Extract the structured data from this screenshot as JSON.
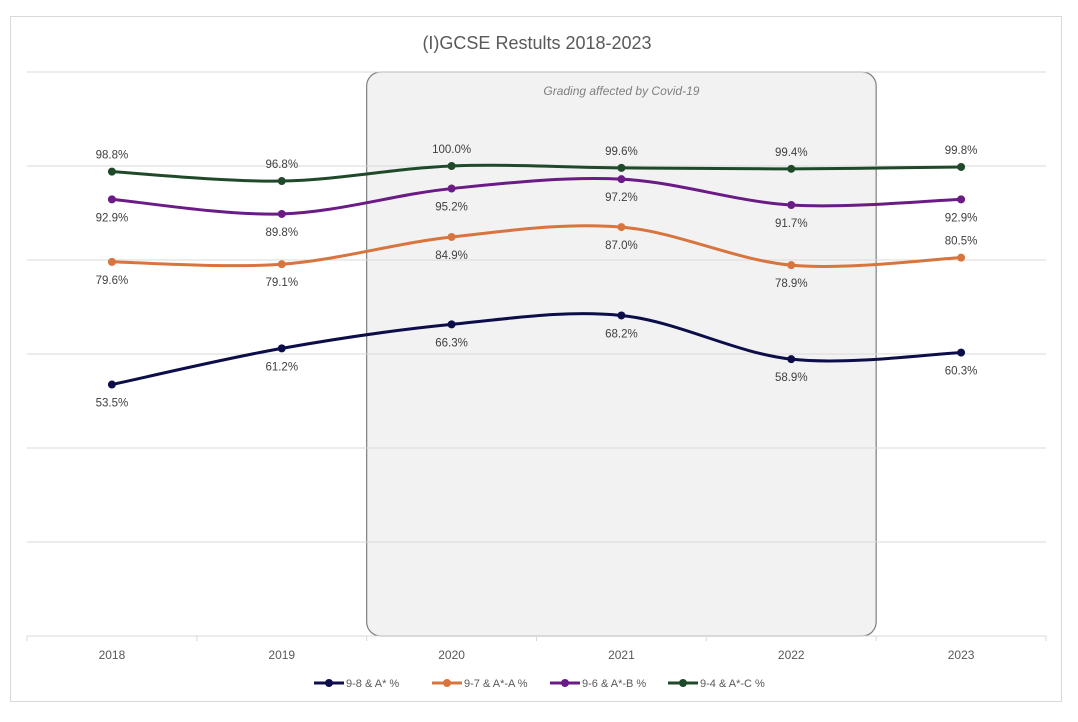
{
  "chart_data": {
    "type": "line",
    "title": "(I)GCSE Restults 2018-2023",
    "categories": [
      "2018",
      "2019",
      "2020",
      "2021",
      "2022",
      "2023"
    ],
    "series": [
      {
        "name": "9-8 & A* %",
        "color": "#0d0d4a",
        "values": [
          53.5,
          61.2,
          66.3,
          68.2,
          58.9,
          60.3
        ],
        "labels": [
          "53.5%",
          "61.2%",
          "66.3%",
          "68.2%",
          "58.9%",
          "60.3%"
        ]
      },
      {
        "name": "9-7 & A*-A %",
        "color": "#d8743e",
        "values": [
          79.6,
          79.1,
          84.9,
          87.0,
          78.9,
          80.5
        ],
        "labels": [
          "79.6%",
          "79.1%",
          "84.9%",
          "87.0%",
          "78.9%",
          "80.5%"
        ]
      },
      {
        "name": "9-6 & A*-B %",
        "color": "#6a1b86",
        "values": [
          92.9,
          89.8,
          95.2,
          97.2,
          91.7,
          92.9
        ],
        "labels": [
          "92.9%",
          "89.8%",
          "95.2%",
          "97.2%",
          "91.7%",
          "92.9%"
        ]
      },
      {
        "name": "9-4 & A*-C %",
        "color": "#1f4a2a",
        "values": [
          98.8,
          96.8,
          100.0,
          99.6,
          99.4,
          99.8
        ],
        "labels": [
          "98.8%",
          "96.8%",
          "100.0%",
          "99.6%",
          "99.4%",
          "99.8%"
        ]
      }
    ],
    "ylim": [
      0,
      120
    ],
    "grid": true,
    "legend_position": "bottom",
    "annotation": {
      "text": "Grading affected by Covid-19",
      "from_category": "2019",
      "to_category": "2022"
    }
  }
}
